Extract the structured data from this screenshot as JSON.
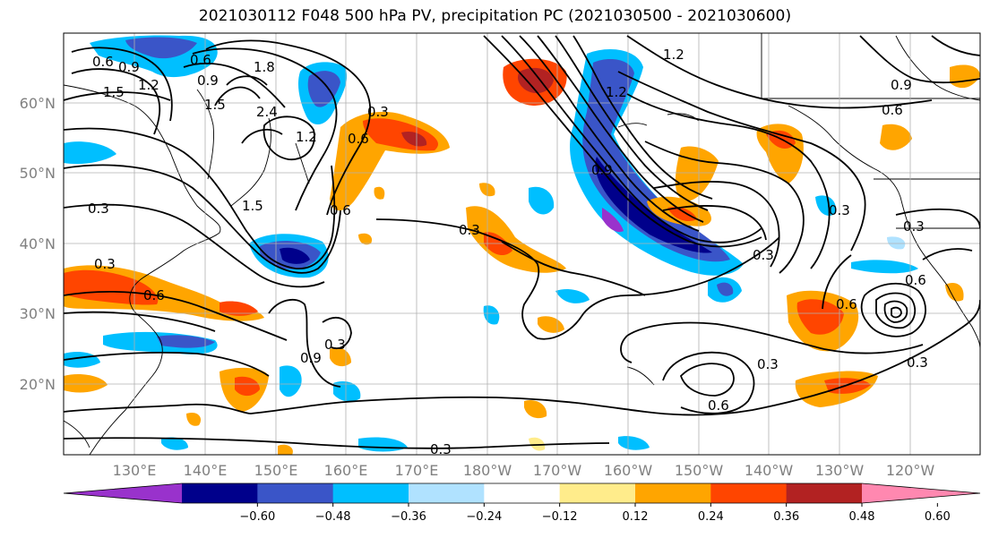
{
  "title": "2021030112 F048 500 hPa PV, precipitation PC (2021030500 - 2021030600)",
  "map": {
    "lat_labels": [
      "60°N",
      "50°N",
      "40°N",
      "30°N",
      "20°N"
    ],
    "lon_labels": [
      "130°E",
      "140°E",
      "150°E",
      "160°E",
      "170°E",
      "180°W",
      "170°W",
      "160°W",
      "150°W",
      "140°W",
      "130°W",
      "120°W"
    ],
    "contour_labels": [
      "0.6",
      "0.9",
      "1.5",
      "1.2",
      "0.6",
      "0.9",
      "1.5",
      "1.8",
      "2.4",
      "1.2",
      "0.3",
      "1.5",
      "0.6",
      "0.3",
      "0.3",
      "0.6",
      "0.9",
      "0.3",
      "0.3",
      "0.3",
      "0.9",
      "0.6",
      "0.6",
      "0.3",
      "0.3",
      "0.6",
      "0.3",
      "0.3",
      "0.6",
      "1.2",
      "0.9",
      "0.6",
      "0.3",
      "1.2"
    ]
  },
  "colorbar": {
    "levels": [
      "−0.60",
      "−0.48",
      "−0.36",
      "−0.24",
      "−0.12",
      "0.12",
      "0.24",
      "0.36",
      "0.48",
      "0.60"
    ],
    "colors": [
      "#9932cc",
      "#00008b",
      "#3a55c8",
      "#00bfff",
      "#b0e2ff",
      "#ffffff",
      "#ffec8b",
      "#ffa500",
      "#ff4500",
      "#b22222",
      "#ff88b0"
    ]
  }
}
